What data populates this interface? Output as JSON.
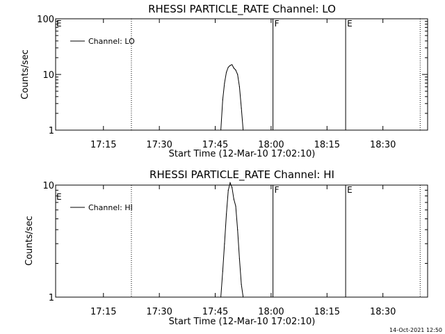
{
  "chart_data": [
    {
      "type": "line",
      "title": "RHESSI PARTICLE_RATE Channel: LO",
      "xlabel": "Start Time (12-Mar-10 17:02:10)",
      "ylabel": "Counts/sec",
      "yscale": "log",
      "ylim": [
        1,
        100
      ],
      "yticks": [
        "1",
        "10",
        "100"
      ],
      "xticks": [
        "17:15",
        "17:30",
        "17:45",
        "18:00",
        "18:15",
        "18:30"
      ],
      "xlim": [
        "17:02:10",
        "18:42:00"
      ],
      "legend": {
        "position": "top-left",
        "entries": [
          "Channel: LO"
        ]
      },
      "series": [
        {
          "name": "Channel: LO",
          "x": [
            "17:46:30",
            "17:47:00",
            "17:47:30",
            "17:48:00",
            "17:48:30",
            "17:49:00",
            "17:49:30",
            "17:50:00",
            "17:50:30",
            "17:51:00",
            "17:51:30",
            "17:52:00",
            "17:52:30"
          ],
          "y": [
            1.0,
            3.5,
            7.0,
            11.0,
            13.5,
            14.5,
            15.0,
            13.0,
            12.0,
            10.0,
            6.0,
            2.5,
            1.0
          ]
        }
      ],
      "markers": [
        {
          "time": "17:22:30",
          "label": "",
          "style": "dotted"
        },
        {
          "time": "18:00:30",
          "label": "F",
          "style": "solid"
        },
        {
          "time": "18:20:00",
          "label": "E",
          "style": "solid"
        },
        {
          "time": "18:40:00",
          "label": "",
          "style": "dotted"
        }
      ],
      "corner_label": "E"
    },
    {
      "type": "line",
      "title": "RHESSI PARTICLE_RATE Channel: HI",
      "xlabel": "Start Time (12-Mar-10 17:02:10)",
      "ylabel": "Counts/sec",
      "yscale": "log",
      "ylim": [
        1,
        10
      ],
      "yticks": [
        "1",
        "10"
      ],
      "xticks": [
        "17:15",
        "17:30",
        "17:45",
        "18:00",
        "18:15",
        "18:30"
      ],
      "xlim": [
        "17:02:10",
        "18:42:00"
      ],
      "legend": {
        "position": "top-left",
        "entries": [
          "Channel: HI"
        ]
      },
      "series": [
        {
          "name": "Channel: HI",
          "x": [
            "17:46:30",
            "17:47:00",
            "17:47:30",
            "17:48:00",
            "17:48:30",
            "17:49:00",
            "17:49:30",
            "17:50:00",
            "17:50:30",
            "17:51:00",
            "17:51:30",
            "17:52:00",
            "17:52:30"
          ],
          "y": [
            1.0,
            1.7,
            3.0,
            5.5,
            9.0,
            10.5,
            9.5,
            7.5,
            6.5,
            4.0,
            2.2,
            1.3,
            1.0
          ]
        }
      ],
      "markers": [
        {
          "time": "17:22:30",
          "label": "",
          "style": "dotted"
        },
        {
          "time": "18:00:30",
          "label": "F",
          "style": "solid"
        },
        {
          "time": "18:20:00",
          "label": "E",
          "style": "solid"
        },
        {
          "time": "18:40:00",
          "label": "",
          "style": "dotted"
        }
      ],
      "corner_label": "E"
    }
  ],
  "footer": {
    "timestamp": "14-Oct-2021 12:50"
  }
}
